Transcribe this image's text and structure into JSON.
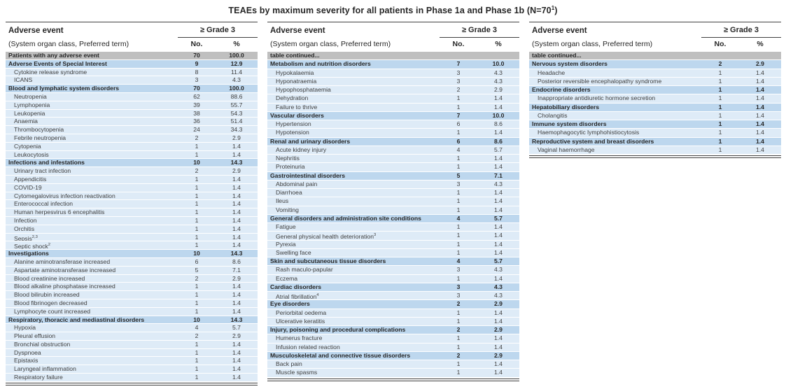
{
  "title": {
    "prefix": "TEAEs by maximum severity for all patients in Phase 1a and Phase 1b (N=70",
    "sup": "1",
    "suffix": ")"
  },
  "table_header": {
    "col1_line1": "Adverse event",
    "col1_line2": "(System organ class, Preferred term)",
    "grade_group": "≥ Grade 3",
    "col_no": "No.",
    "col_pct": "%"
  },
  "colors": {
    "gray_row": "#bfbfbf",
    "section_row": "#bdd7ee",
    "item_row": "#deebf7",
    "rule": "#404040"
  },
  "tables": [
    {
      "name": "column-1",
      "rows": [
        {
          "type": "summary",
          "label": "Patients with any adverse event",
          "no": "70",
          "pct": "100.0"
        },
        {
          "type": "section",
          "label": "Adverse Events of Special Interest",
          "no": "9",
          "pct": "12.9"
        },
        {
          "type": "item",
          "label": "Cytokine release syndrome",
          "no": "8",
          "pct": "11.4"
        },
        {
          "type": "item",
          "label": "ICANS",
          "no": "3",
          "pct": "4.3"
        },
        {
          "type": "section",
          "label": "Blood and lymphatic system disorders",
          "no": "70",
          "pct": "100.0"
        },
        {
          "type": "item",
          "label": "Neutropenia",
          "no": "62",
          "pct": "88.6"
        },
        {
          "type": "item",
          "label": "Lymphopenia",
          "no": "39",
          "pct": "55.7"
        },
        {
          "type": "item",
          "label": "Leukopenia",
          "no": "38",
          "pct": "54.3"
        },
        {
          "type": "item",
          "label": "Anaemia",
          "no": "36",
          "pct": "51.4"
        },
        {
          "type": "item",
          "label": "Thrombocytopenia",
          "no": "24",
          "pct": "34.3"
        },
        {
          "type": "item",
          "label": "Febrile neutropenia",
          "no": "2",
          "pct": "2.9"
        },
        {
          "type": "item",
          "label": "Cytopenia",
          "no": "1",
          "pct": "1.4"
        },
        {
          "type": "item",
          "label": "Leukocytosis",
          "no": "1",
          "pct": "1.4"
        },
        {
          "type": "section",
          "label": "Infections and infestations",
          "no": "10",
          "pct": "14.3"
        },
        {
          "type": "item",
          "label": "Urinary tract infection",
          "no": "2",
          "pct": "2.9"
        },
        {
          "type": "item",
          "label": "Appendicitis",
          "no": "1",
          "pct": "1.4"
        },
        {
          "type": "item",
          "label": "COVID-19",
          "no": "1",
          "pct": "1.4"
        },
        {
          "type": "item",
          "label": "Cytomegalovirus infection reactivation",
          "no": "1",
          "pct": "1.4"
        },
        {
          "type": "item",
          "label": "Enterococcal infection",
          "no": "1",
          "pct": "1.4"
        },
        {
          "type": "item",
          "label": "Human herpesvirus 6 encephalitis",
          "no": "1",
          "pct": "1.4"
        },
        {
          "type": "item",
          "label": "Infection",
          "no": "1",
          "pct": "1.4"
        },
        {
          "type": "item",
          "label": "Orchitis",
          "no": "1",
          "pct": "1.4"
        },
        {
          "type": "item",
          "label": "Sepsis",
          "sup": "2,3",
          "no": "1",
          "pct": "1.4"
        },
        {
          "type": "item",
          "label": "Septic shock",
          "sup": "2",
          "no": "1",
          "pct": "1.4"
        },
        {
          "type": "section",
          "label": "Investigations",
          "no": "10",
          "pct": "14.3"
        },
        {
          "type": "item",
          "label": "Alanine aminotransferase increased",
          "no": "6",
          "pct": "8.6"
        },
        {
          "type": "item",
          "label": "Aspartate aminotransferase increased",
          "no": "5",
          "pct": "7.1"
        },
        {
          "type": "item",
          "label": "Blood creatinine increased",
          "no": "2",
          "pct": "2.9"
        },
        {
          "type": "item",
          "label": "Blood alkaline phosphatase increased",
          "no": "1",
          "pct": "1.4"
        },
        {
          "type": "item",
          "label": "Blood bilirubin increased",
          "no": "1",
          "pct": "1.4"
        },
        {
          "type": "item",
          "label": "Blood fibrinogen decreased",
          "no": "1",
          "pct": "1.4"
        },
        {
          "type": "item",
          "label": "Lymphocyte count increased",
          "no": "1",
          "pct": "1.4"
        },
        {
          "type": "section",
          "label": "Respiratory, thoracic and mediastinal disorders",
          "no": "10",
          "pct": "14.3"
        },
        {
          "type": "item",
          "label": "Hypoxia",
          "no": "4",
          "pct": "5.7"
        },
        {
          "type": "item",
          "label": "Pleural effusion",
          "no": "2",
          "pct": "2.9"
        },
        {
          "type": "item",
          "label": "Bronchial obstruction",
          "no": "1",
          "pct": "1.4"
        },
        {
          "type": "item",
          "label": "Dyspnoea",
          "no": "1",
          "pct": "1.4"
        },
        {
          "type": "item",
          "label": "Epistaxis",
          "no": "1",
          "pct": "1.4"
        },
        {
          "type": "item",
          "label": "Laryngeal inflammation",
          "no": "1",
          "pct": "1.4"
        },
        {
          "type": "item",
          "label": "Respiratory failure",
          "no": "1",
          "pct": "1.4"
        }
      ]
    },
    {
      "name": "column-2",
      "rows": [
        {
          "type": "continued",
          "label": "table continued...",
          "no": "",
          "pct": ""
        },
        {
          "type": "section",
          "label": "Metabolism and nutrition disorders",
          "no": "7",
          "pct": "10.0"
        },
        {
          "type": "item",
          "label": "Hypokalaemia",
          "no": "3",
          "pct": "4.3"
        },
        {
          "type": "item",
          "label": "Hyponatraemia",
          "no": "3",
          "pct": "4.3"
        },
        {
          "type": "item",
          "label": "Hypophosphataemia",
          "no": "2",
          "pct": "2.9"
        },
        {
          "type": "item",
          "label": "Dehydration",
          "no": "1",
          "pct": "1.4"
        },
        {
          "type": "item",
          "label": "Failure to thrive",
          "no": "1",
          "pct": "1.4"
        },
        {
          "type": "section",
          "label": "Vascular disorders",
          "no": "7",
          "pct": "10.0"
        },
        {
          "type": "item",
          "label": "Hypertension",
          "no": "6",
          "pct": "8.6"
        },
        {
          "type": "item",
          "label": "Hypotension",
          "no": "1",
          "pct": "1.4"
        },
        {
          "type": "section",
          "label": "Renal and urinary disorders",
          "no": "6",
          "pct": "8.6"
        },
        {
          "type": "item",
          "label": "Acute kidney injury",
          "no": "4",
          "pct": "5.7"
        },
        {
          "type": "item",
          "label": "Nephritis",
          "no": "1",
          "pct": "1.4"
        },
        {
          "type": "item",
          "label": "Proteinuria",
          "no": "1",
          "pct": "1.4"
        },
        {
          "type": "section",
          "label": "Gastrointestinal disorders",
          "no": "5",
          "pct": "7.1"
        },
        {
          "type": "item",
          "label": "Abdominal pain",
          "no": "3",
          "pct": "4.3"
        },
        {
          "type": "item",
          "label": "Diarrhoea",
          "no": "1",
          "pct": "1.4"
        },
        {
          "type": "item",
          "label": "Ileus",
          "no": "1",
          "pct": "1.4"
        },
        {
          "type": "item",
          "label": "Vomiting",
          "no": "1",
          "pct": "1.4"
        },
        {
          "type": "section",
          "label": "General disorders and administration site conditions",
          "no": "4",
          "pct": "5.7"
        },
        {
          "type": "item",
          "label": "Fatigue",
          "no": "1",
          "pct": "1.4"
        },
        {
          "type": "item",
          "label": "General physical health deterioration",
          "sup": "3",
          "no": "1",
          "pct": "1.4"
        },
        {
          "type": "item",
          "label": "Pyrexia",
          "no": "1",
          "pct": "1.4"
        },
        {
          "type": "item",
          "label": "Swelling face",
          "no": "1",
          "pct": "1.4"
        },
        {
          "type": "section",
          "label": "Skin and subcutaneous tissue disorders",
          "no": "4",
          "pct": "5.7"
        },
        {
          "type": "item",
          "label": "Rash maculo-papular",
          "no": "3",
          "pct": "4.3"
        },
        {
          "type": "item",
          "label": "Eczema",
          "no": "1",
          "pct": "1.4"
        },
        {
          "type": "section",
          "label": "Cardiac disorders",
          "no": "3",
          "pct": "4.3"
        },
        {
          "type": "item",
          "label": "Atrial fibrillation",
          "sup": "4",
          "no": "3",
          "pct": "4.3"
        },
        {
          "type": "section",
          "label": "Eye disorders",
          "no": "2",
          "pct": "2.9"
        },
        {
          "type": "item",
          "label": "Periorbital oedema",
          "no": "1",
          "pct": "1.4"
        },
        {
          "type": "item",
          "label": "Ulcerative keratitis",
          "no": "1",
          "pct": "1.4"
        },
        {
          "type": "section",
          "label": "Injury, poisoning and procedural complications",
          "no": "2",
          "pct": "2.9"
        },
        {
          "type": "item",
          "label": "Humerus fracture",
          "no": "1",
          "pct": "1.4"
        },
        {
          "type": "item",
          "label": "Infusion related reaction",
          "no": "1",
          "pct": "1.4"
        },
        {
          "type": "section",
          "label": "Musculoskeletal and connective tissue disorders",
          "no": "2",
          "pct": "2.9"
        },
        {
          "type": "item",
          "label": "Back pain",
          "no": "1",
          "pct": "1.4"
        },
        {
          "type": "item",
          "label": "Muscle spasms",
          "no": "1",
          "pct": "1.4"
        }
      ]
    },
    {
      "name": "column-3",
      "rows": [
        {
          "type": "continued",
          "label": "table continued...",
          "no": "",
          "pct": ""
        },
        {
          "type": "section",
          "label": "Nervous system disorders",
          "no": "2",
          "pct": "2.9"
        },
        {
          "type": "item",
          "label": "Headache",
          "no": "1",
          "pct": "1.4"
        },
        {
          "type": "item",
          "label": "Posterior reversible encephalopathy syndrome",
          "no": "1",
          "pct": "1.4"
        },
        {
          "type": "section",
          "label": "Endocrine disorders",
          "no": "1",
          "pct": "1.4"
        },
        {
          "type": "item",
          "label": "Inappropriate antidiuretic hormone secretion",
          "no": "1",
          "pct": "1.4"
        },
        {
          "type": "section",
          "label": "Hepatobiliary disorders",
          "no": "1",
          "pct": "1.4"
        },
        {
          "type": "item",
          "label": "Cholangitis",
          "no": "1",
          "pct": "1.4"
        },
        {
          "type": "section",
          "label": "Immune system disorders",
          "no": "1",
          "pct": "1.4"
        },
        {
          "type": "item",
          "label": "Haemophagocytic lymphohistiocytosis",
          "no": "1",
          "pct": "1.4"
        },
        {
          "type": "section",
          "label": "Reproductive system and breast disorders",
          "no": "1",
          "pct": "1.4"
        },
        {
          "type": "item",
          "label": "Vaginal haemorrhage",
          "no": "1",
          "pct": "1.4"
        }
      ]
    }
  ]
}
